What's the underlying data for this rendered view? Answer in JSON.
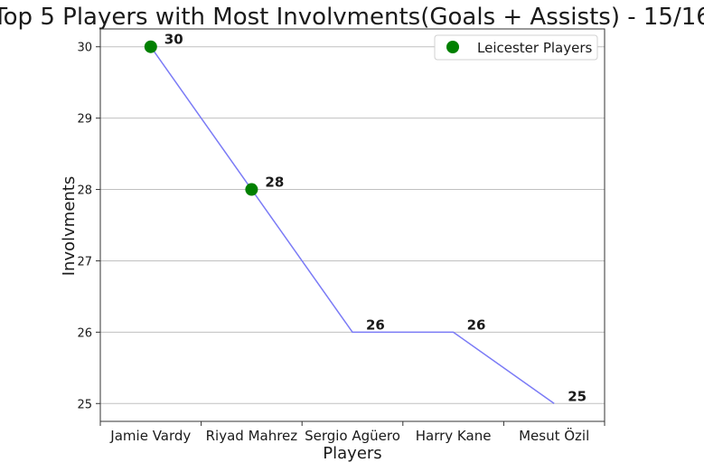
{
  "chart_data": {
    "type": "line",
    "title": "Top 5 Players with Most Involvments(Goals + Assists) - 15/16",
    "xlabel": "Players",
    "ylabel": "Involvments",
    "categories": [
      "Jamie Vardy",
      "Riyad Mahrez",
      "Sergio Agüero",
      "Harry Kane",
      "Mesut Özil"
    ],
    "values": [
      30,
      28,
      26,
      26,
      25
    ],
    "data_labels": [
      "30",
      "28",
      "26",
      "26",
      "25"
    ],
    "yticks": [
      25,
      26,
      27,
      28,
      29,
      30
    ],
    "ytick_labels": [
      "25",
      "26",
      "27",
      "28",
      "29",
      "30"
    ],
    "ylim": [
      24.75,
      30.25
    ],
    "grid": "horizontal",
    "highlight_indices": [
      0,
      1
    ],
    "legend": {
      "position": "top-right",
      "entries": [
        "Leicester Players"
      ]
    },
    "colors": {
      "line": "#7b7bf6",
      "highlight": "#008000",
      "grid": "#c0c0c0",
      "text": "#1a1a1a"
    }
  }
}
